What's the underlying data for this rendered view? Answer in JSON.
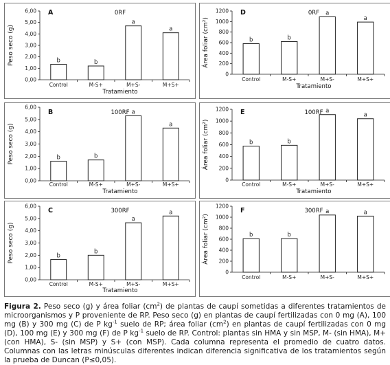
{
  "chart_data": [
    {
      "type": "bar",
      "panel": "A",
      "title": "0RF",
      "categories": [
        "Control",
        "M-S+",
        "M+S-",
        "M+S+"
      ],
      "values": [
        1.35,
        1.2,
        4.7,
        4.1
      ],
      "letters": [
        "b",
        "b",
        "a",
        "a"
      ],
      "ylabel": "Peso seco (g)",
      "xlabel": "Tratamiento",
      "ylim": [
        0,
        6
      ],
      "yticks": [
        "0,00",
        "1,00",
        "2,00",
        "3,00",
        "4,00",
        "5,00",
        "6,00"
      ]
    },
    {
      "type": "bar",
      "panel": "D",
      "title": "0RF",
      "categories": [
        "Control",
        "M-S+",
        "M+S-",
        "M+S+"
      ],
      "values": [
        580,
        620,
        1090,
        990
      ],
      "letters": [
        "b",
        "b",
        "a",
        "a"
      ],
      "ylabel": "Área foliar (cm²)",
      "xlabel": "Tratamiento",
      "ylim": [
        0,
        1200
      ],
      "yticks": [
        "0",
        "200",
        "400",
        "600",
        "800",
        "1000",
        "1200"
      ]
    },
    {
      "type": "bar",
      "panel": "B",
      "title": "100RF",
      "categories": [
        "Control",
        "M-S+",
        "M+S-",
        "M+S+"
      ],
      "values": [
        1.6,
        1.7,
        5.3,
        4.3
      ],
      "letters": [
        "b",
        "b",
        "a",
        "a"
      ],
      "ylabel": "Peso seco (g)",
      "xlabel": "Tratamiento",
      "ylim": [
        0,
        6
      ],
      "yticks": [
        "0,00",
        "1,00",
        "2,00",
        "3,00",
        "4,00",
        "5,00",
        "6,00"
      ]
    },
    {
      "type": "bar",
      "panel": "E",
      "title": "100RF",
      "categories": [
        "Control",
        "M-S+",
        "M+S-",
        "M+S+"
      ],
      "values": [
        575,
        590,
        1110,
        1040
      ],
      "letters": [
        "b",
        "b",
        "a",
        "a"
      ],
      "ylabel": "Área foliar (cm²)",
      "xlabel": "Tratamiento",
      "ylim": [
        0,
        1200
      ],
      "yticks": [
        "0",
        "200",
        "400",
        "600",
        "800",
        "1000",
        "1200"
      ]
    },
    {
      "type": "bar",
      "panel": "C",
      "title": "300RF",
      "categories": [
        "Control",
        "M-S+",
        "M+S-",
        "M+S+"
      ],
      "values": [
        1.65,
        2.0,
        4.65,
        5.2
      ],
      "letters": [
        "b",
        "b",
        "a",
        "a"
      ],
      "ylabel": "Peso seco (g)",
      "xlabel": "Tratamiento",
      "ylim": [
        0,
        6
      ],
      "yticks": [
        "0,00",
        "1,00",
        "2,00",
        "3,00",
        "4,00",
        "5,00",
        "6,00"
      ]
    },
    {
      "type": "bar",
      "panel": "F",
      "title": "300RF",
      "categories": [
        "Control",
        "M-S+",
        "M+S-",
        "M+S+"
      ],
      "values": [
        610,
        610,
        1040,
        1020
      ],
      "letters": [
        "b",
        "b",
        "a",
        "a"
      ],
      "ylabel": "Área foliar (cm²)",
      "xlabel": "",
      "ylim": [
        0,
        1200
      ],
      "yticks": [
        "0",
        "200",
        "400",
        "600",
        "800",
        "1000",
        "1200"
      ]
    }
  ],
  "caption": {
    "label": "Figura 2.",
    "text_1": " Peso seco (g) y área foliar (cm",
    "sup_1": "2",
    "text_2": ") de plantas de caupí sometidas a diferentes tratamientos de microorganismos y P proveniente de RP. Peso seco (g) en plantas de caupí fertilizadas con 0 mg (A), 100 mg (B) y 300 mg (C) de P kg",
    "sup_2": "-1",
    "text_3": " suelo de RP; área foliar (cm",
    "sup_3": "2",
    "text_4": ") en plantas de caupí fertilizadas con 0 mg (D), 100 mg (E) y 300 mg (F) de P kg",
    "sup_4": "-1",
    "text_5": " suelo de RP. Control: plantas sin HMA y sin MSP, M- (sin HMA), M+ (con HMA), S- (sin MSP) y S+ (con MSP). Cada columna representa el promedio de cuatro datos. Columnas con las letras minúsculas diferentes indican diferencia significativa de los tratamientos según la prueba de Duncan (P≤0,05)."
  }
}
